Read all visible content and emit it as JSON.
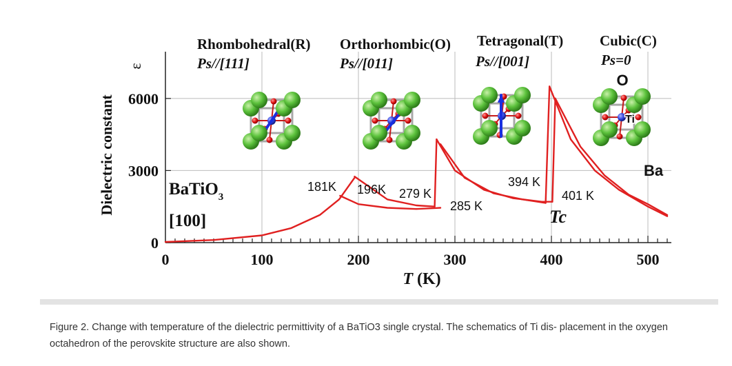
{
  "chart_data": {
    "type": "line",
    "title": "",
    "xlabel": "T (K)",
    "ylabel": "Dielectric constant",
    "ylabel_symbol": "ε",
    "xlim": [
      0,
      520
    ],
    "ylim": [
      0,
      7000
    ],
    "xticks": [
      0,
      100,
      200,
      300,
      400,
      500
    ],
    "yticks": [
      0,
      3000,
      6000
    ],
    "grid": true,
    "material_label": "BaTiO",
    "material_subscript": "3",
    "direction_label": "[100]",
    "phases": [
      {
        "name": "Rhombohedral(R)",
        "polarization": "Ps//[111]"
      },
      {
        "name": "Orthorhombic(O)",
        "polarization": "Ps//[011]"
      },
      {
        "name": "Tetragonal(T)",
        "polarization": "Ps//[001]"
      },
      {
        "name": "Cubic(C)",
        "polarization": "Ps=0"
      }
    ],
    "atom_labels": {
      "oxygen": "O",
      "titanium": "Ti",
      "barium": "Ba"
    },
    "annotations": [
      {
        "text": "181K",
        "x": 181,
        "y": 2800
      },
      {
        "text": "196K",
        "x": 196,
        "y": 2800
      },
      {
        "text": "279 K",
        "x": 279,
        "y": 2600
      },
      {
        "text": "285 K",
        "x": 285,
        "y": 1700
      },
      {
        "text": "394 K",
        "x": 394,
        "y": 2850
      },
      {
        "text": "401 K",
        "x": 401,
        "y": 2250
      },
      {
        "text": "Tc",
        "x": 398,
        "y": 1000
      }
    ],
    "series": [
      {
        "color": "#e02020",
        "segments": [
          [
            [
              0,
              30
            ],
            [
              50,
              110
            ],
            [
              100,
              300
            ],
            [
              130,
              600
            ],
            [
              160,
              1150
            ],
            [
              180,
              1800
            ],
            [
              196,
              2700
            ]
          ],
          [
            [
              181,
              1950
            ],
            [
              200,
              1600
            ],
            [
              230,
              1450
            ],
            [
              260,
              1400
            ],
            [
              285,
              1450
            ]
          ],
          [
            [
              196,
              2750
            ],
            [
              230,
              1800
            ],
            [
              260,
              1550
            ],
            [
              279,
              1500
            ]
          ],
          [
            [
              279,
              1500
            ],
            [
              281,
              4300
            ]
          ],
          [
            [
              281,
              4300
            ],
            [
              300,
              3000
            ],
            [
              330,
              2200
            ],
            [
              360,
              1850
            ],
            [
              390,
              1700
            ],
            [
              401,
              1700
            ]
          ],
          [
            [
              285,
              4100
            ],
            [
              310,
              2700
            ],
            [
              340,
              2050
            ],
            [
              370,
              1800
            ],
            [
              394,
              1650
            ]
          ],
          [
            [
              394,
              1650
            ],
            [
              398,
              6500
            ]
          ],
          [
            [
              401,
              1700
            ],
            [
              404,
              6000
            ]
          ],
          [
            [
              398,
              6500
            ],
            [
              420,
              4300
            ],
            [
              445,
              3000
            ],
            [
              470,
              2200
            ],
            [
              500,
              1500
            ],
            [
              520,
              1100
            ]
          ],
          [
            [
              404,
              6000
            ],
            [
              430,
              4000
            ],
            [
              455,
              2800
            ],
            [
              480,
              2000
            ],
            [
              500,
              1600
            ],
            [
              520,
              1150
            ]
          ]
        ]
      }
    ]
  },
  "caption": "Figure 2. Change with temperature of the dielectric permittivity of a BaTiO3 single crystal. The schematics of Ti dis- placement in the oxygen octahedron of the perovskite structure are also shown."
}
